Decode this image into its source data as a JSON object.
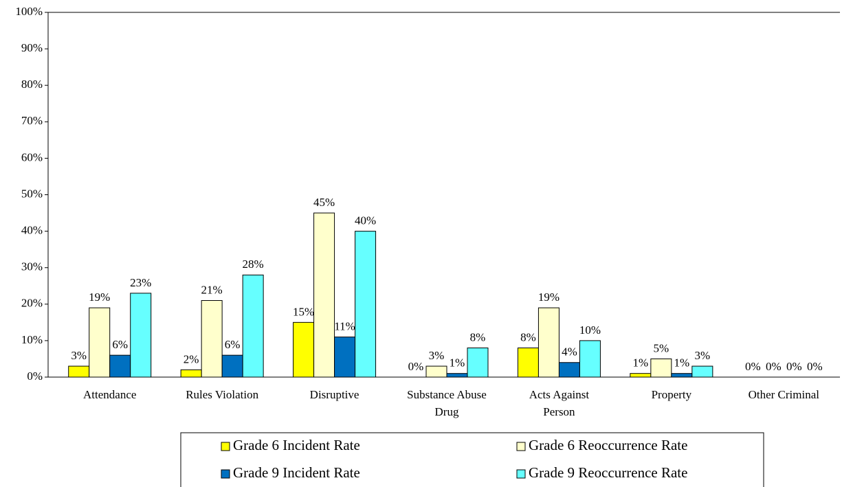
{
  "chart_data": {
    "type": "bar",
    "categories": [
      "Attendance",
      "Rules Violation",
      "Disruptive",
      "Substance Abuse Drug",
      "Acts Against Person",
      "Property",
      "Other Criminal"
    ],
    "series": [
      {
        "name": "Grade 6 Incident Rate",
        "color": "#ffff00",
        "values": [
          3,
          2,
          15,
          0,
          8,
          1,
          0
        ],
        "value_labels": [
          "3%",
          "2%",
          "15%",
          "0%",
          "8%",
          "1%",
          "0%"
        ]
      },
      {
        "name": "Grade 6 Reoccurrence Rate",
        "color": "#ffffcc",
        "values": [
          19,
          21,
          45,
          3,
          19,
          5,
          0
        ],
        "value_labels": [
          "19%",
          "21%",
          "45%",
          "3%",
          "19%",
          "5%",
          "0%"
        ]
      },
      {
        "name": "Grade 9 Incident Rate",
        "color": "#0070c0",
        "values": [
          6,
          6,
          11,
          1,
          4,
          1,
          0
        ],
        "value_labels": [
          "6%",
          "6%",
          "11%",
          "1%",
          "4%",
          "1%",
          "0%"
        ]
      },
      {
        "name": "Grade 9 Reoccurrence Rate",
        "color": "#66ffff",
        "values": [
          23,
          28,
          40,
          8,
          10,
          3,
          0
        ],
        "value_labels": [
          "23%",
          "28%",
          "40%",
          "8%",
          "10%",
          "3%",
          "0%"
        ]
      }
    ],
    "ylim": [
      0,
      100
    ],
    "yticks": [
      {
        "value": 0,
        "label": "0%"
      },
      {
        "value": 10,
        "label": "10%"
      },
      {
        "value": 20,
        "label": "20%"
      },
      {
        "value": 30,
        "label": "30%"
      },
      {
        "value": 40,
        "label": "40%"
      },
      {
        "value": 50,
        "label": "50%"
      },
      {
        "value": 60,
        "label": "60%"
      },
      {
        "value": 70,
        "label": "70%"
      },
      {
        "value": 80,
        "label": "80%"
      },
      {
        "value": 90,
        "label": "90%"
      },
      {
        "value": 100,
        "label": "100%"
      }
    ],
    "legend": "bottom"
  }
}
